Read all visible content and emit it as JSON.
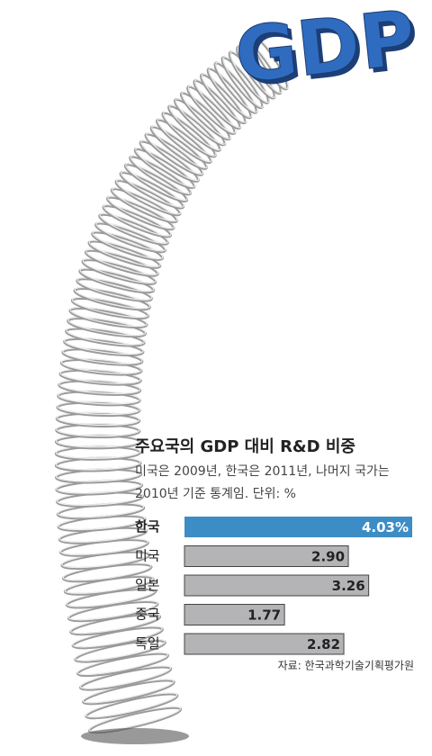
{
  "logo": "GDP",
  "chart_data": {
    "type": "hbar",
    "title": "주요국의 GDP 대비 R&D 비중",
    "subtitle": [
      "미국은 2009년, 한국은 2011년, 나머지 국가는",
      "2010년 기준 통계임. 단위: %"
    ],
    "categories": [
      "한국",
      "미국",
      "일본",
      "중국",
      "독일"
    ],
    "values": [
      4.03,
      2.9,
      3.26,
      1.77,
      2.82
    ],
    "value_labels": [
      "4.03%",
      "2.90",
      "3.26",
      "1.77",
      "2.82"
    ],
    "colors": [
      "#3c8cc6",
      "#b4b4b6",
      "#b4b4b6",
      "#b4b4b6",
      "#b4b4b6"
    ],
    "bold_category": 0,
    "xlim": [
      0,
      4.03
    ],
    "source": "자료: 한국과학기술기획평가원"
  }
}
